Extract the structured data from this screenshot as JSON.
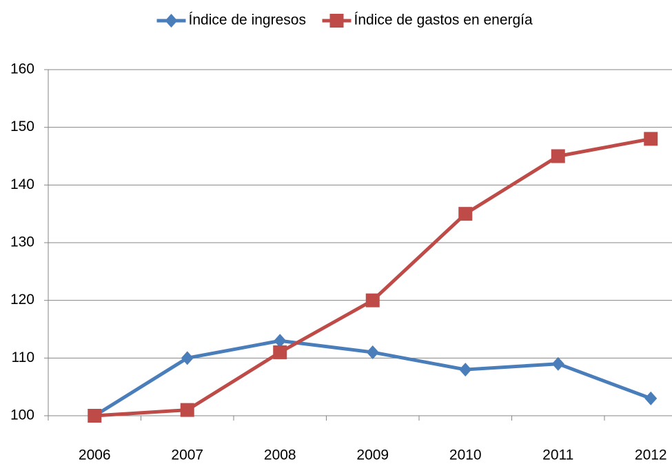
{
  "chart_data": {
    "type": "line",
    "categories": [
      "2006",
      "2007",
      "2008",
      "2009",
      "2010",
      "2011",
      "2012"
    ],
    "series": [
      {
        "name": "Índice de ingresos",
        "color": "#4a7ebb",
        "marker": "diamond",
        "values": [
          100,
          110,
          113,
          111,
          108,
          109,
          103
        ]
      },
      {
        "name": "Índice de gastos en energía",
        "color": "#be4b48",
        "marker": "square",
        "values": [
          100,
          101,
          111,
          120,
          135,
          145,
          148
        ]
      }
    ],
    "ylim": [
      100,
      160
    ],
    "yticks": [
      100,
      110,
      120,
      130,
      140,
      150,
      160
    ],
    "grid": true,
    "legend": "top"
  }
}
